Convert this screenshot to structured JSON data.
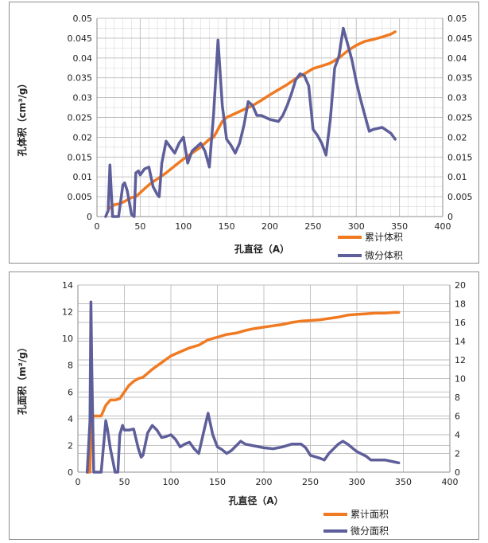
{
  "colors": {
    "cumulative": "#f07a22",
    "differential": "#5e5e9a",
    "grid": "#bdbdbd",
    "axis": "#8c8c8c"
  },
  "chart_data": [
    {
      "type": "line",
      "xlabel": "孔直径（A）",
      "ylabel": "孔体积（cm³/g）",
      "xlim": [
        0,
        400
      ],
      "xticks": [
        0,
        50,
        100,
        150,
        200,
        250,
        300,
        350,
        400
      ],
      "ylim": [
        0,
        0.05
      ],
      "yticks": [
        "0",
        "0.005",
        "0.01",
        "0.015",
        "0.02",
        "0.025",
        "0.03",
        "0.035",
        "0.04",
        "0.045",
        "0.05"
      ],
      "y2lim": [
        0,
        0.05
      ],
      "y2ticks": [
        "0",
        "0.005",
        "0.01",
        "0.015",
        "0.02",
        "0.025",
        "0.03",
        "0.035",
        "0.04",
        "0.045",
        "0.05"
      ],
      "grid": true,
      "legend_position": "bottom-right",
      "series": [
        {
          "name": "累计体积",
          "axis": "left",
          "points": [
            [
              14,
              0.002
            ],
            [
              17,
              0.0025
            ],
            [
              20,
              0.003
            ],
            [
              25,
              0.0032
            ],
            [
              30,
              0.0036
            ],
            [
              35,
              0.0042
            ],
            [
              40,
              0.0048
            ],
            [
              45,
              0.005
            ],
            [
              50,
              0.006
            ],
            [
              55,
              0.007
            ],
            [
              60,
              0.008
            ],
            [
              65,
              0.0088
            ],
            [
              70,
              0.0095
            ],
            [
              80,
              0.011
            ],
            [
              90,
              0.0128
            ],
            [
              100,
              0.0145
            ],
            [
              110,
              0.016
            ],
            [
              120,
              0.0175
            ],
            [
              130,
              0.0195
            ],
            [
              135,
              0.02
            ],
            [
              140,
              0.022
            ],
            [
              145,
              0.024
            ],
            [
              150,
              0.025
            ],
            [
              160,
              0.026
            ],
            [
              170,
              0.027
            ],
            [
              180,
              0.028
            ],
            [
              190,
              0.0293
            ],
            [
              200,
              0.0307
            ],
            [
              210,
              0.032
            ],
            [
              220,
              0.0333
            ],
            [
              230,
              0.0348
            ],
            [
              240,
              0.036
            ],
            [
              250,
              0.0373
            ],
            [
              260,
              0.038
            ],
            [
              270,
              0.0387
            ],
            [
              280,
              0.04
            ],
            [
              290,
              0.0418
            ],
            [
              300,
              0.0432
            ],
            [
              310,
              0.0442
            ],
            [
              320,
              0.0447
            ],
            [
              330,
              0.0453
            ],
            [
              340,
              0.046
            ],
            [
              345,
              0.0466
            ]
          ]
        },
        {
          "name": "微分体积",
          "axis": "right",
          "points": [
            [
              10,
              0
            ],
            [
              13,
              0.0015
            ],
            [
              15,
              0.013
            ],
            [
              18,
              0
            ],
            [
              20,
              0
            ],
            [
              25,
              0
            ],
            [
              30,
              0.008
            ],
            [
              32,
              0.0085
            ],
            [
              35,
              0.0065
            ],
            [
              40,
              0.0005
            ],
            [
              43,
              0
            ],
            [
              45,
              0.011
            ],
            [
              48,
              0.0115
            ],
            [
              50,
              0.0105
            ],
            [
              55,
              0.012
            ],
            [
              60,
              0.0125
            ],
            [
              65,
              0.0075
            ],
            [
              70,
              0.0055
            ],
            [
              72,
              0.005
            ],
            [
              75,
              0.0135
            ],
            [
              80,
              0.019
            ],
            [
              85,
              0.0175
            ],
            [
              90,
              0.016
            ],
            [
              95,
              0.0185
            ],
            [
              100,
              0.02
            ],
            [
              105,
              0.0135
            ],
            [
              110,
              0.0165
            ],
            [
              115,
              0.0175
            ],
            [
              120,
              0.0185
            ],
            [
              125,
              0.0165
            ],
            [
              130,
              0.0125
            ],
            [
              135,
              0.026
            ],
            [
              140,
              0.0445
            ],
            [
              145,
              0.028
            ],
            [
              150,
              0.0195
            ],
            [
              155,
              0.018
            ],
            [
              160,
              0.016
            ],
            [
              165,
              0.0185
            ],
            [
              170,
              0.023
            ],
            [
              175,
              0.029
            ],
            [
              180,
              0.028
            ],
            [
              185,
              0.0255
            ],
            [
              190,
              0.0255
            ],
            [
              195,
              0.025
            ],
            [
              200,
              0.0245
            ],
            [
              210,
              0.024
            ],
            [
              215,
              0.0255
            ],
            [
              220,
              0.028
            ],
            [
              225,
              0.031
            ],
            [
              230,
              0.0345
            ],
            [
              235,
              0.036
            ],
            [
              240,
              0.0355
            ],
            [
              245,
              0.033
            ],
            [
              250,
              0.022
            ],
            [
              255,
              0.0205
            ],
            [
              260,
              0.0185
            ],
            [
              265,
              0.0155
            ],
            [
              270,
              0.0245
            ],
            [
              275,
              0.0375
            ],
            [
              280,
              0.0405
            ],
            [
              285,
              0.0475
            ],
            [
              290,
              0.0435
            ],
            [
              295,
              0.0395
            ],
            [
              300,
              0.034
            ],
            [
              305,
              0.0295
            ],
            [
              310,
              0.0255
            ],
            [
              315,
              0.0215
            ],
            [
              320,
              0.022
            ],
            [
              330,
              0.0225
            ],
            [
              340,
              0.021
            ],
            [
              345,
              0.0195
            ]
          ]
        }
      ]
    },
    {
      "type": "line",
      "xlabel": "孔直径（A）",
      "ylabel": "孔面积（m²/g）",
      "xlim": [
        0,
        400
      ],
      "xticks": [
        0,
        50,
        100,
        150,
        200,
        250,
        300,
        350,
        400
      ],
      "ylim": [
        0,
        14
      ],
      "yticks": [
        "0",
        "2",
        "4",
        "6",
        "8",
        "10",
        "12",
        "14"
      ],
      "y2lim": [
        0,
        20
      ],
      "y2ticks": [
        "0",
        "2",
        "4",
        "6",
        "8",
        "10",
        "12",
        "14",
        "16",
        "18",
        "20"
      ],
      "grid": true,
      "legend_position": "bottom-right",
      "series": [
        {
          "name": "累计面积",
          "axis": "left",
          "points": [
            [
              10,
              0
            ],
            [
              13,
              0
            ],
            [
              14,
              4.0
            ],
            [
              17,
              4.2
            ],
            [
              20,
              4.2
            ],
            [
              25,
              4.2
            ],
            [
              30,
              5.0
            ],
            [
              35,
              5.4
            ],
            [
              40,
              5.4
            ],
            [
              45,
              5.5
            ],
            [
              50,
              6.0
            ],
            [
              55,
              6.5
            ],
            [
              60,
              6.8
            ],
            [
              65,
              7.0
            ],
            [
              70,
              7.1
            ],
            [
              80,
              7.7
            ],
            [
              90,
              8.2
            ],
            [
              100,
              8.7
            ],
            [
              110,
              9.0
            ],
            [
              120,
              9.3
            ],
            [
              130,
              9.5
            ],
            [
              140,
              9.9
            ],
            [
              150,
              10.1
            ],
            [
              160,
              10.3
            ],
            [
              170,
              10.4
            ],
            [
              180,
              10.6
            ],
            [
              190,
              10.75
            ],
            [
              200,
              10.85
            ],
            [
              210,
              10.95
            ],
            [
              220,
              11.05
            ],
            [
              230,
              11.2
            ],
            [
              240,
              11.3
            ],
            [
              250,
              11.35
            ],
            [
              260,
              11.4
            ],
            [
              270,
              11.5
            ],
            [
              280,
              11.6
            ],
            [
              290,
              11.75
            ],
            [
              300,
              11.8
            ],
            [
              310,
              11.85
            ],
            [
              320,
              11.9
            ],
            [
              330,
              11.9
            ],
            [
              340,
              11.95
            ],
            [
              345,
              11.95
            ]
          ]
        },
        {
          "name": "微分面积",
          "axis": "right",
          "points": [
            [
              10,
              0
            ],
            [
              13,
              5.5
            ],
            [
              14,
              18.2
            ],
            [
              15,
              11.0
            ],
            [
              17,
              0
            ],
            [
              20,
              0
            ],
            [
              25,
              0
            ],
            [
              30,
              5.5
            ],
            [
              32,
              4.5
            ],
            [
              35,
              2.5
            ],
            [
              38,
              1.0
            ],
            [
              40,
              0
            ],
            [
              43,
              0
            ],
            [
              45,
              4.0
            ],
            [
              48,
              5.0
            ],
            [
              50,
              4.5
            ],
            [
              55,
              4.5
            ],
            [
              60,
              4.6
            ],
            [
              65,
              2.5
            ],
            [
              68,
              1.6
            ],
            [
              70,
              1.8
            ],
            [
              75,
              4.2
            ],
            [
              80,
              5.0
            ],
            [
              85,
              4.5
            ],
            [
              90,
              3.7
            ],
            [
              95,
              3.8
            ],
            [
              100,
              4.0
            ],
            [
              105,
              3.5
            ],
            [
              110,
              2.7
            ],
            [
              115,
              3.0
            ],
            [
              120,
              3.2
            ],
            [
              125,
              2.5
            ],
            [
              130,
              2.0
            ],
            [
              135,
              4.2
            ],
            [
              140,
              6.3
            ],
            [
              145,
              4.0
            ],
            [
              150,
              2.7
            ],
            [
              155,
              2.4
            ],
            [
              160,
              2.0
            ],
            [
              165,
              2.3
            ],
            [
              170,
              2.8
            ],
            [
              175,
              3.3
            ],
            [
              180,
              3.0
            ],
            [
              190,
              2.8
            ],
            [
              200,
              2.6
            ],
            [
              210,
              2.5
            ],
            [
              220,
              2.7
            ],
            [
              230,
              3.0
            ],
            [
              240,
              3.0
            ],
            [
              245,
              2.6
            ],
            [
              250,
              1.8
            ],
            [
              260,
              1.5
            ],
            [
              265,
              1.3
            ],
            [
              270,
              2.0
            ],
            [
              280,
              3.0
            ],
            [
              285,
              3.3
            ],
            [
              290,
              3.0
            ],
            [
              300,
              2.2
            ],
            [
              310,
              1.7
            ],
            [
              315,
              1.3
            ],
            [
              320,
              1.3
            ],
            [
              330,
              1.3
            ],
            [
              340,
              1.1
            ],
            [
              345,
              1.0
            ]
          ]
        }
      ]
    }
  ]
}
